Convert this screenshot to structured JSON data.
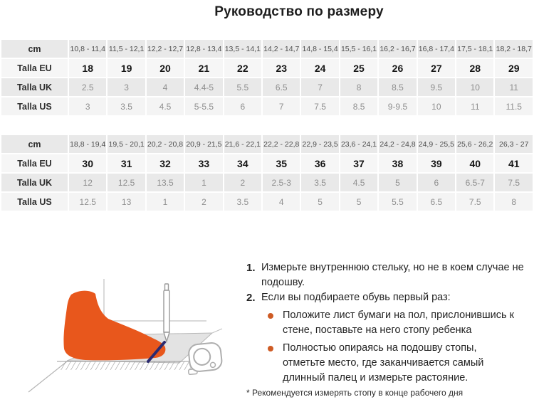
{
  "title": "Руководство по размеру",
  "tables": [
    {
      "rows": [
        {
          "label": "cm",
          "values": [
            "10,8 - 11,4",
            "11,5 - 12,1",
            "12,2 - 12,7",
            "12,8 - 13,4",
            "13,5 - 14,1",
            "14,2 - 14,7",
            "14,8 - 15,4",
            "15,5 - 16,1",
            "16,2 - 16,7",
            "16,8 - 17,4",
            "17,5 - 18,1",
            "18,2 - 18,7"
          ]
        },
        {
          "label": "Talla EU",
          "values": [
            "18",
            "19",
            "20",
            "21",
            "22",
            "23",
            "24",
            "25",
            "26",
            "27",
            "28",
            "29"
          ]
        },
        {
          "label": "Talla UK",
          "values": [
            "2.5",
            "3",
            "4",
            "4.4-5",
            "5.5",
            "6.5",
            "7",
            "8",
            "8.5",
            "9.5",
            "10",
            "11"
          ]
        },
        {
          "label": "Talla US",
          "values": [
            "3",
            "3.5",
            "4.5",
            "5-5.5",
            "6",
            "7",
            "7.5",
            "8.5",
            "9-9.5",
            "10",
            "11",
            "11.5"
          ]
        }
      ]
    },
    {
      "rows": [
        {
          "label": "cm",
          "values": [
            "18,8 - 19,4",
            "19,5 - 20,1",
            "20,2 - 20,8",
            "20,9 - 21,5",
            "21,6 - 22,1",
            "22,2 - 22,8",
            "22,9 - 23,5",
            "23,6 - 24,1",
            "24,2 - 24,8",
            "24,9 - 25,5",
            "25,6 - 26,2",
            "26,3 - 27"
          ]
        },
        {
          "label": "Talla EU",
          "values": [
            "30",
            "31",
            "32",
            "33",
            "34",
            "35",
            "36",
            "37",
            "38",
            "39",
            "40",
            "41"
          ]
        },
        {
          "label": "Talla UK",
          "values": [
            "12",
            "12.5",
            "13.5",
            "1",
            "2",
            "2.5-3",
            "3.5",
            "4.5",
            "5",
            "6",
            "6.5-7",
            "7.5"
          ]
        },
        {
          "label": "Talla US",
          "values": [
            "12.5",
            "13",
            "1",
            "2",
            "3.5",
            "4",
            "5",
            "5",
            "5.5",
            "6.5",
            "7.5",
            "8"
          ]
        }
      ]
    }
  ],
  "instructions": {
    "items": [
      {
        "num": "1.",
        "text": "Измерьте внутреннюю стельку, но не в коем случае не подошву."
      },
      {
        "num": "2.",
        "text": "Если вы подбираете обувь первый раз:"
      }
    ],
    "bullets": [
      "Положите лист бумаги на пол, прислонившись к стене, поставьте на него стопу ребенка",
      "Полностью опираясь на подошву стопы, отметьте место, где заканчивается самый длинный палец и измерьте растояние."
    ],
    "footnote": "* Рекомендуется измерять стопу в конце рабочего дня"
  },
  "colors": {
    "foot_orange": "#E8571C",
    "bullet_orange": "#CE5B24",
    "navy_mark": "#2B2A70",
    "row_dark": "#e9e9e9",
    "row_light": "#f5f5f5"
  },
  "illustration": {
    "name": "foot-measurement-diagram"
  }
}
